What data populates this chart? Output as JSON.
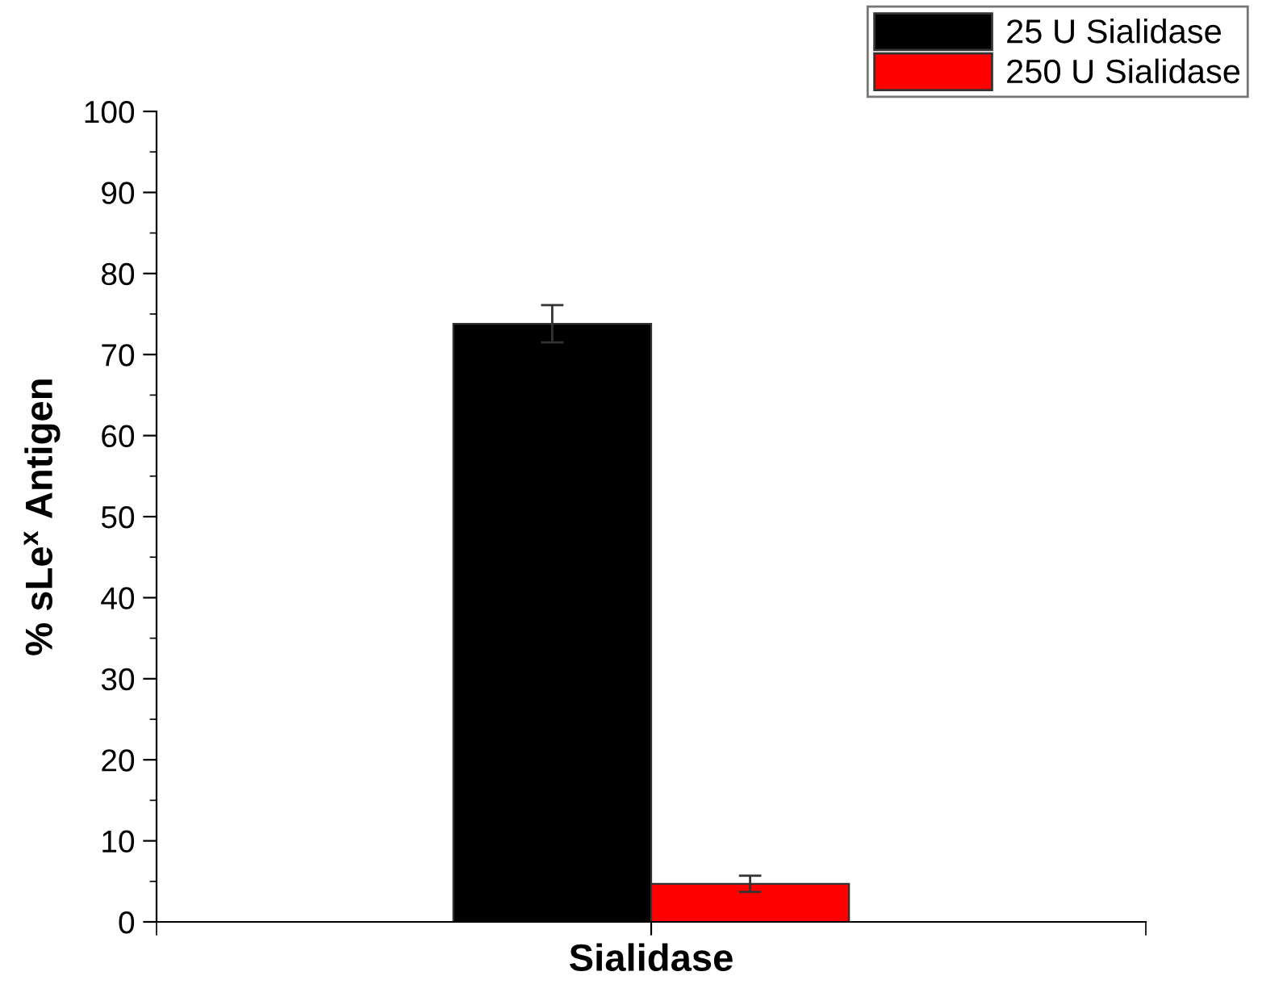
{
  "chart_data": {
    "type": "bar",
    "ylabel": "% sLe$^{x}$ Antigen",
    "categories": [
      "Sialidase"
    ],
    "series": [
      {
        "name": "25 U Sialidase",
        "color": "#000000",
        "values": [
          73.8
        ],
        "errors": [
          2.3
        ]
      },
      {
        "name": "250 U Sialidase",
        "color": "#ff0000",
        "values": [
          4.7
        ],
        "errors": [
          1.0
        ]
      }
    ],
    "ylim": [
      0,
      100
    ],
    "yticks": [
      0,
      10,
      20,
      30,
      40,
      50,
      60,
      70,
      80,
      90,
      100
    ],
    "grid": false,
    "legend": "top right"
  }
}
